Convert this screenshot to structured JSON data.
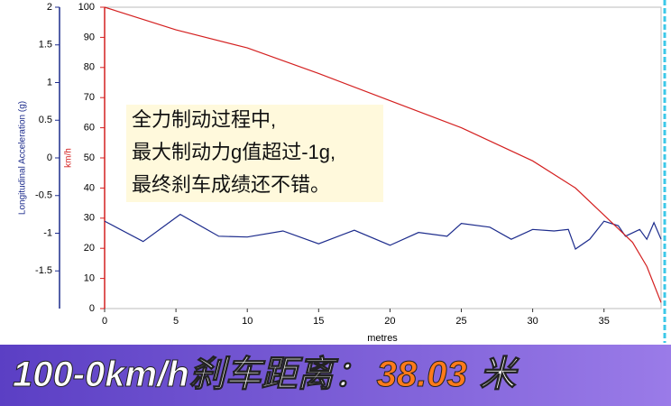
{
  "chart_data": {
    "type": "line",
    "xlabel": "metres",
    "ylabel": "Longitudinal Acceleration (g)",
    "y2label": "km/h",
    "xlim": [
      0,
      39
    ],
    "xticks": [
      0,
      5,
      10,
      15,
      20,
      25,
      30,
      35
    ],
    "ylim": [
      -2,
      2
    ],
    "yticks": [
      -1.5,
      -1,
      -0.5,
      0,
      0.5,
      1,
      1.5,
      2
    ],
    "y2lim": [
      0,
      100
    ],
    "y2ticks": [
      0,
      10,
      20,
      30,
      40,
      50,
      60,
      70,
      80,
      90,
      100
    ],
    "series": [
      {
        "color": "#1c2b8c",
        "axis": "y",
        "x": [
          0,
          2.7,
          5.3,
          8,
          10,
          12.5,
          15,
          17.5,
          20,
          22,
          24,
          25,
          27,
          28.5,
          30,
          31.5,
          32.5,
          33,
          34,
          35,
          36,
          36.5,
          37.5,
          38,
          38.5,
          39
        ],
        "values": [
          -0.84,
          -1.11,
          -0.75,
          -1.04,
          -1.05,
          -0.97,
          -1.14,
          -0.96,
          -1.16,
          -0.99,
          -1.04,
          -0.87,
          -0.92,
          -1.08,
          -0.95,
          -0.97,
          -0.95,
          -1.21,
          -1.08,
          -0.84,
          -0.9,
          -1.04,
          -0.95,
          -1.08,
          -0.86,
          -1.08
        ]
      },
      {
        "color": "#d42020",
        "axis": "y2",
        "x": [
          0,
          5,
          10,
          15,
          20,
          25,
          30,
          33,
          35,
          37,
          38,
          38.5,
          39
        ],
        "values": [
          100,
          92.5,
          86.5,
          78,
          69,
          60,
          49,
          40,
          31,
          22,
          14,
          8,
          2
        ]
      }
    ],
    "annotation": [
      "全力制动过程中,",
      "最大制动力g值超过-1g,",
      "最终刹车成绩还不错。"
    ]
  },
  "banner": {
    "label": "100-0km/h刹车距离：",
    "value": "38.03",
    "unit": "米"
  }
}
